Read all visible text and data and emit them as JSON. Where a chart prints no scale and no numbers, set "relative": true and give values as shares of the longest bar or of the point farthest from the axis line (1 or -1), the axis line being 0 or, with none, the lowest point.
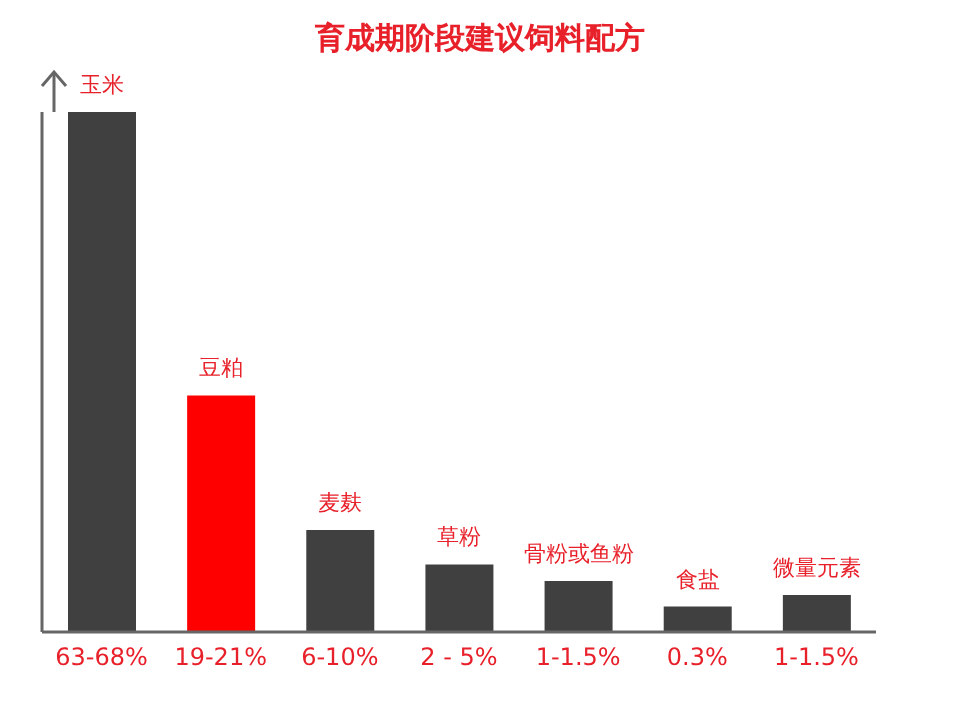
{
  "chart_data": {
    "type": "bar",
    "title": "育成期阶段建议饲料配方",
    "relative": true,
    "categories": [
      "63-68%",
      "19-21%",
      "6-10%",
      "2 - 5%",
      "1-1.5%",
      "0.3%",
      "1-1.5%"
    ],
    "values": [
      1,
      0.455,
      0.196,
      0.13,
      0.098,
      0.049,
      0.071
    ],
    "colors": [
      "#404040",
      "#ff0000",
      "#404040",
      "#404040",
      "#404040",
      "#404040",
      "#404040"
    ],
    "annotations": [
      {
        "text": "玉米",
        "x": "63-68%",
        "y": 1
      },
      {
        "text": "豆粕",
        "x": "19-21%",
        "y": 0.455
      },
      {
        "text": "麦麸",
        "x": "6-10%",
        "y": 0.196
      },
      {
        "text": "草粉",
        "x": "2 - 5%",
        "y": 0.13
      },
      {
        "text": "骨粉或鱼粉",
        "x": "1-1.5%",
        "y": 0.098
      },
      {
        "text": "食盐",
        "x": "0.3%",
        "y": 0.049
      },
      "微量元素"
    ]
  }
}
